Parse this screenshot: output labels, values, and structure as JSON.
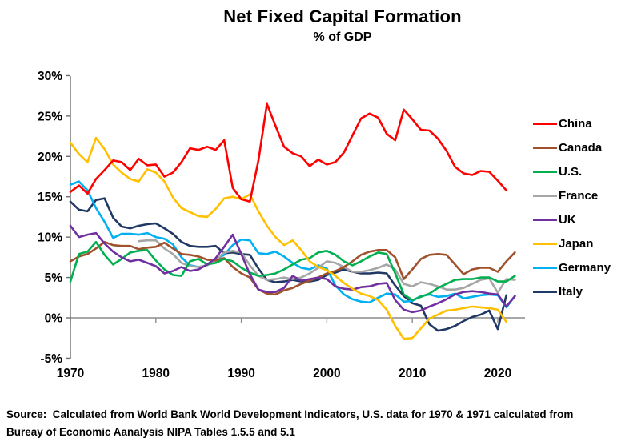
{
  "title": "Net Fixed Capital Formation",
  "subtitle": "% of GDP",
  "source": {
    "line1": "Source:  Calculated from World Bank World Development Indicators, U.S. data for 1970 & 1971 calculated from",
    "line2": "Bureay of Economic Aanalysis NIPA Tables 1.5.5 and 5.1"
  },
  "chart_data": {
    "type": "line",
    "title": "Net Fixed Capital Formation",
    "subtitle": "% of GDP",
    "xlabel": "",
    "ylabel": "% of GDP",
    "xlim": [
      1970,
      2022.5
    ],
    "ylim": [
      -5,
      30
    ],
    "x_tick_years": [
      1970,
      1980,
      1990,
      2000,
      2010,
      2020
    ],
    "x_tick_labels": [
      "1970",
      "1980",
      "1990",
      "2000",
      "2010",
      "2020"
    ],
    "y_tick_values": [
      30,
      25,
      20,
      15,
      10,
      5,
      0,
      -5
    ],
    "y_tick_labels": [
      "30%",
      "25%",
      "20%",
      "15%",
      "10%",
      "5%",
      "0%",
      "-5%"
    ],
    "grid": "zero-baseline-only",
    "legend_position": "right",
    "axis_color": "#6e6e6e",
    "zero_line_color": "#8c8c8c",
    "series": [
      {
        "name": "China",
        "color": "#ff0000",
        "start_year": 1970,
        "values": [
          15.6,
          16.4,
          15.4,
          17.2,
          18.3,
          19.5,
          19.3,
          18.3,
          19.7,
          18.9,
          19.0,
          17.5,
          18.0,
          19.3,
          21.0,
          20.8,
          21.2,
          20.8,
          22.0,
          16.1,
          14.7,
          14.4,
          19.5,
          26.5,
          23.8,
          21.2,
          20.4,
          20.0,
          18.8,
          19.6,
          19.0,
          19.3,
          20.5,
          22.6,
          24.7,
          25.3,
          24.8,
          22.8,
          22.0,
          25.8,
          24.6,
          23.3,
          23.2,
          22.2,
          20.7,
          18.7,
          17.9,
          17.7,
          18.2,
          18.1,
          17.0,
          15.8
        ]
      },
      {
        "name": "Canada",
        "color": "#a0522d",
        "start_year": 1970,
        "values": [
          7.0,
          7.6,
          7.9,
          8.6,
          9.4,
          9.0,
          8.9,
          8.9,
          8.5,
          8.7,
          8.8,
          9.3,
          8.6,
          7.9,
          7.8,
          7.6,
          7.2,
          7.1,
          7.4,
          6.3,
          5.5,
          5.0,
          3.5,
          3.0,
          2.9,
          3.4,
          3.7,
          4.2,
          4.6,
          5.0,
          5.5,
          5.8,
          6.3,
          7.0,
          7.8,
          8.2,
          8.4,
          8.4,
          7.5,
          4.8,
          6.0,
          7.3,
          7.8,
          7.9,
          7.8,
          6.6,
          5.4,
          6.0,
          6.2,
          6.2,
          5.7,
          7.0,
          8.1
        ]
      },
      {
        "name": "U.S.",
        "color": "#00b050",
        "start_year": 1970,
        "values": [
          4.5,
          7.9,
          8.2,
          9.4,
          7.8,
          6.6,
          7.3,
          8.1,
          8.3,
          8.4,
          7.1,
          6.0,
          5.3,
          5.2,
          7.0,
          7.3,
          6.6,
          6.8,
          7.3,
          7.0,
          6.2,
          5.6,
          5.2,
          5.3,
          5.5,
          6.0,
          6.6,
          7.2,
          7.4,
          8.1,
          8.3,
          7.8,
          7.0,
          6.5,
          7.0,
          7.6,
          8.1,
          7.9,
          5.5,
          2.9,
          2.2,
          2.6,
          3.0,
          3.7,
          4.2,
          4.7,
          4.8,
          4.8,
          5.0,
          5.0,
          4.5,
          4.5,
          5.2
        ]
      },
      {
        "name": "France",
        "color": "#a6a6a6",
        "start_year": 1978,
        "values": [
          9.5,
          9.6,
          9.6,
          8.6,
          7.9,
          6.8,
          6.4,
          6.3,
          6.5,
          7.1,
          8.1,
          8.3,
          8.1,
          6.5,
          5.2,
          4.7,
          4.8,
          5.0,
          4.8,
          5.0,
          5.5,
          6.2,
          7.0,
          6.8,
          6.3,
          5.7,
          5.7,
          5.9,
          6.2,
          6.6,
          6.0,
          4.2,
          3.9,
          4.4,
          4.2,
          3.9,
          3.5,
          3.5,
          3.7,
          4.2,
          4.7,
          4.9,
          3.1,
          4.8,
          4.7
        ]
      },
      {
        "name": "UK",
        "color": "#7030a0",
        "start_year": 1970,
        "values": [
          11.4,
          10.0,
          10.3,
          10.5,
          9.2,
          8.2,
          7.5,
          7.0,
          7.2,
          6.8,
          6.4,
          5.5,
          5.8,
          6.3,
          5.8,
          6.0,
          6.6,
          7.4,
          8.8,
          10.3,
          7.9,
          5.4,
          3.5,
          3.2,
          3.2,
          3.7,
          5.2,
          4.6,
          4.8,
          5.0,
          4.8,
          3.9,
          3.6,
          3.5,
          3.8,
          3.9,
          4.2,
          4.3,
          2.2,
          1.0,
          0.7,
          0.9,
          1.4,
          1.8,
          2.3,
          2.9,
          3.2,
          3.3,
          3.2,
          3.0,
          2.9,
          1.4,
          2.7
        ]
      },
      {
        "name": "Japan",
        "color": "#ffc000",
        "start_year": 1970,
        "values": [
          21.7,
          20.3,
          19.3,
          22.3,
          20.9,
          19.0,
          18.0,
          17.2,
          16.9,
          18.4,
          18.0,
          16.9,
          14.9,
          13.6,
          13.1,
          12.6,
          12.5,
          13.5,
          14.8,
          15.0,
          14.7,
          15.3,
          13.2,
          11.4,
          10.0,
          9.0,
          9.6,
          8.4,
          7.0,
          6.3,
          5.9,
          5.2,
          4.3,
          3.6,
          3.0,
          2.7,
          2.2,
          1.0,
          -1.0,
          -2.6,
          -2.5,
          -1.3,
          -0.1,
          0.4,
          0.9,
          1.0,
          1.2,
          1.4,
          1.3,
          1.2,
          1.0,
          -0.5
        ]
      },
      {
        "name": "Germany",
        "color": "#00b0f0",
        "start_year": 1970,
        "values": [
          16.5,
          16.9,
          15.8,
          13.6,
          11.9,
          9.9,
          10.4,
          10.4,
          10.3,
          10.5,
          10.0,
          9.8,
          9.1,
          7.5,
          6.5,
          6.3,
          6.5,
          7.2,
          7.8,
          9.0,
          9.7,
          9.6,
          8.0,
          7.9,
          8.2,
          7.6,
          6.8,
          6.2,
          6.0,
          6.5,
          6.1,
          4.0,
          2.9,
          2.3,
          2.0,
          1.9,
          2.5,
          3.0,
          2.9,
          2.0,
          2.1,
          2.7,
          2.9,
          2.6,
          2.7,
          3.0,
          2.4,
          2.6,
          2.8,
          2.9,
          2.8,
          1.3,
          2.7
        ]
      },
      {
        "name": "Italy",
        "color": "#203864",
        "start_year": 1970,
        "values": [
          14.4,
          13.4,
          13.2,
          14.6,
          14.8,
          12.4,
          11.3,
          11.1,
          11.4,
          11.6,
          11.7,
          11.1,
          10.4,
          9.4,
          8.9,
          8.8,
          8.8,
          8.9,
          8.0,
          8.1,
          7.9,
          7.8,
          6.1,
          4.7,
          4.4,
          4.5,
          4.7,
          4.5,
          4.5,
          4.7,
          5.3,
          5.6,
          6.0,
          5.7,
          5.5,
          5.5,
          5.6,
          5.5,
          4.0,
          2.7,
          1.8,
          1.5,
          -0.8,
          -1.6,
          -1.4,
          -1.0,
          -0.4,
          0.1,
          0.4,
          0.9,
          -1.4,
          2.8
        ]
      }
    ]
  }
}
